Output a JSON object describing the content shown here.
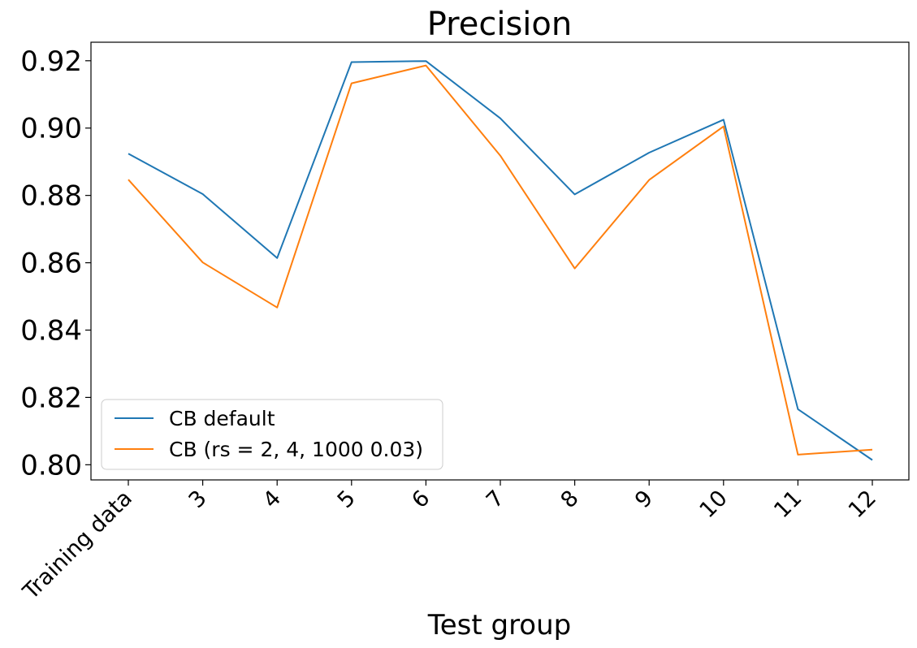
{
  "chart_data": {
    "type": "line",
    "title": "Precision",
    "xlabel": "Test group",
    "ylabel": "",
    "categories": [
      "Training data",
      "3",
      "4",
      "5",
      "6",
      "7",
      "8",
      "9",
      "10",
      "11",
      "12"
    ],
    "series": [
      {
        "name": "CB default",
        "color": "#1f77b4",
        "values": [
          0.8924,
          0.8804,
          0.8614,
          0.9196,
          0.9199,
          0.9029,
          0.8803,
          0.8927,
          0.9025,
          0.8165,
          0.8014
        ]
      },
      {
        "name": "CB (rs = 2, 4, 1000 0.03)",
        "color": "#ff7f0e",
        "values": [
          0.8847,
          0.8601,
          0.8467,
          0.9133,
          0.9186,
          0.8918,
          0.8583,
          0.8846,
          0.9005,
          0.803,
          0.8045
        ]
      }
    ],
    "ylim": [
      0.7955,
      0.9255
    ],
    "yticks": [
      "0.80",
      "0.82",
      "0.84",
      "0.86",
      "0.88",
      "0.90",
      "0.92"
    ],
    "grid": false,
    "legend_position": "lower-left"
  }
}
